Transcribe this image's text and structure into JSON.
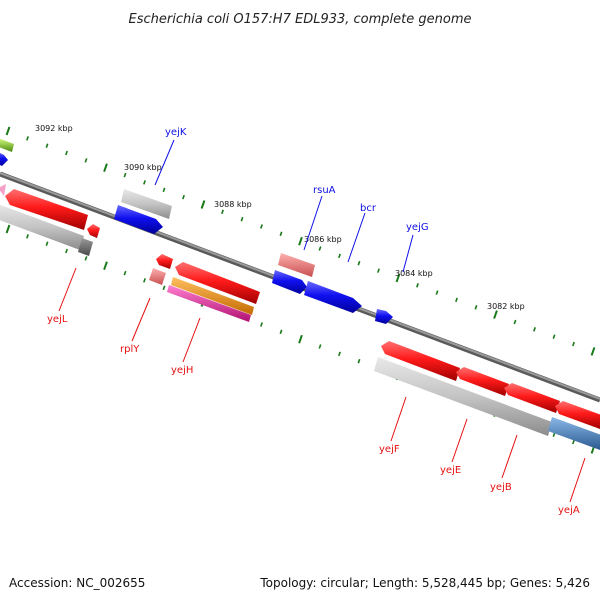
{
  "title": "Escherichia coli O157:H7 EDL933, complete genome",
  "footer": {
    "accession": "Accession: NC_002655",
    "topology": "Topology: circular; Length: 5,528,445 bp; Genes: 5,426"
  },
  "ruler_labels": [
    "3092 kbp",
    "3090 kbp",
    "3088 kbp",
    "3086 kbp",
    "3084 kbp",
    "3082 kbp"
  ],
  "gene_labels_forward": [
    "yejK",
    "rsuA",
    "bcr",
    "yejG"
  ],
  "gene_labels_reverse": [
    "yejL",
    "rplY",
    "yejH",
    "yejF",
    "yejE",
    "yejB",
    "yejA"
  ],
  "colors": {
    "forward": "#1010e6",
    "reverse": "#e61010",
    "backbone": "#808080",
    "tick": "#1a7a1a",
    "rna": "#e88080",
    "orange": "#f0960a",
    "magenta": "#e62ea0",
    "steelblue": "#4a87c0",
    "lime": "#8ccc2a",
    "gray": "#bdbdbd"
  }
}
